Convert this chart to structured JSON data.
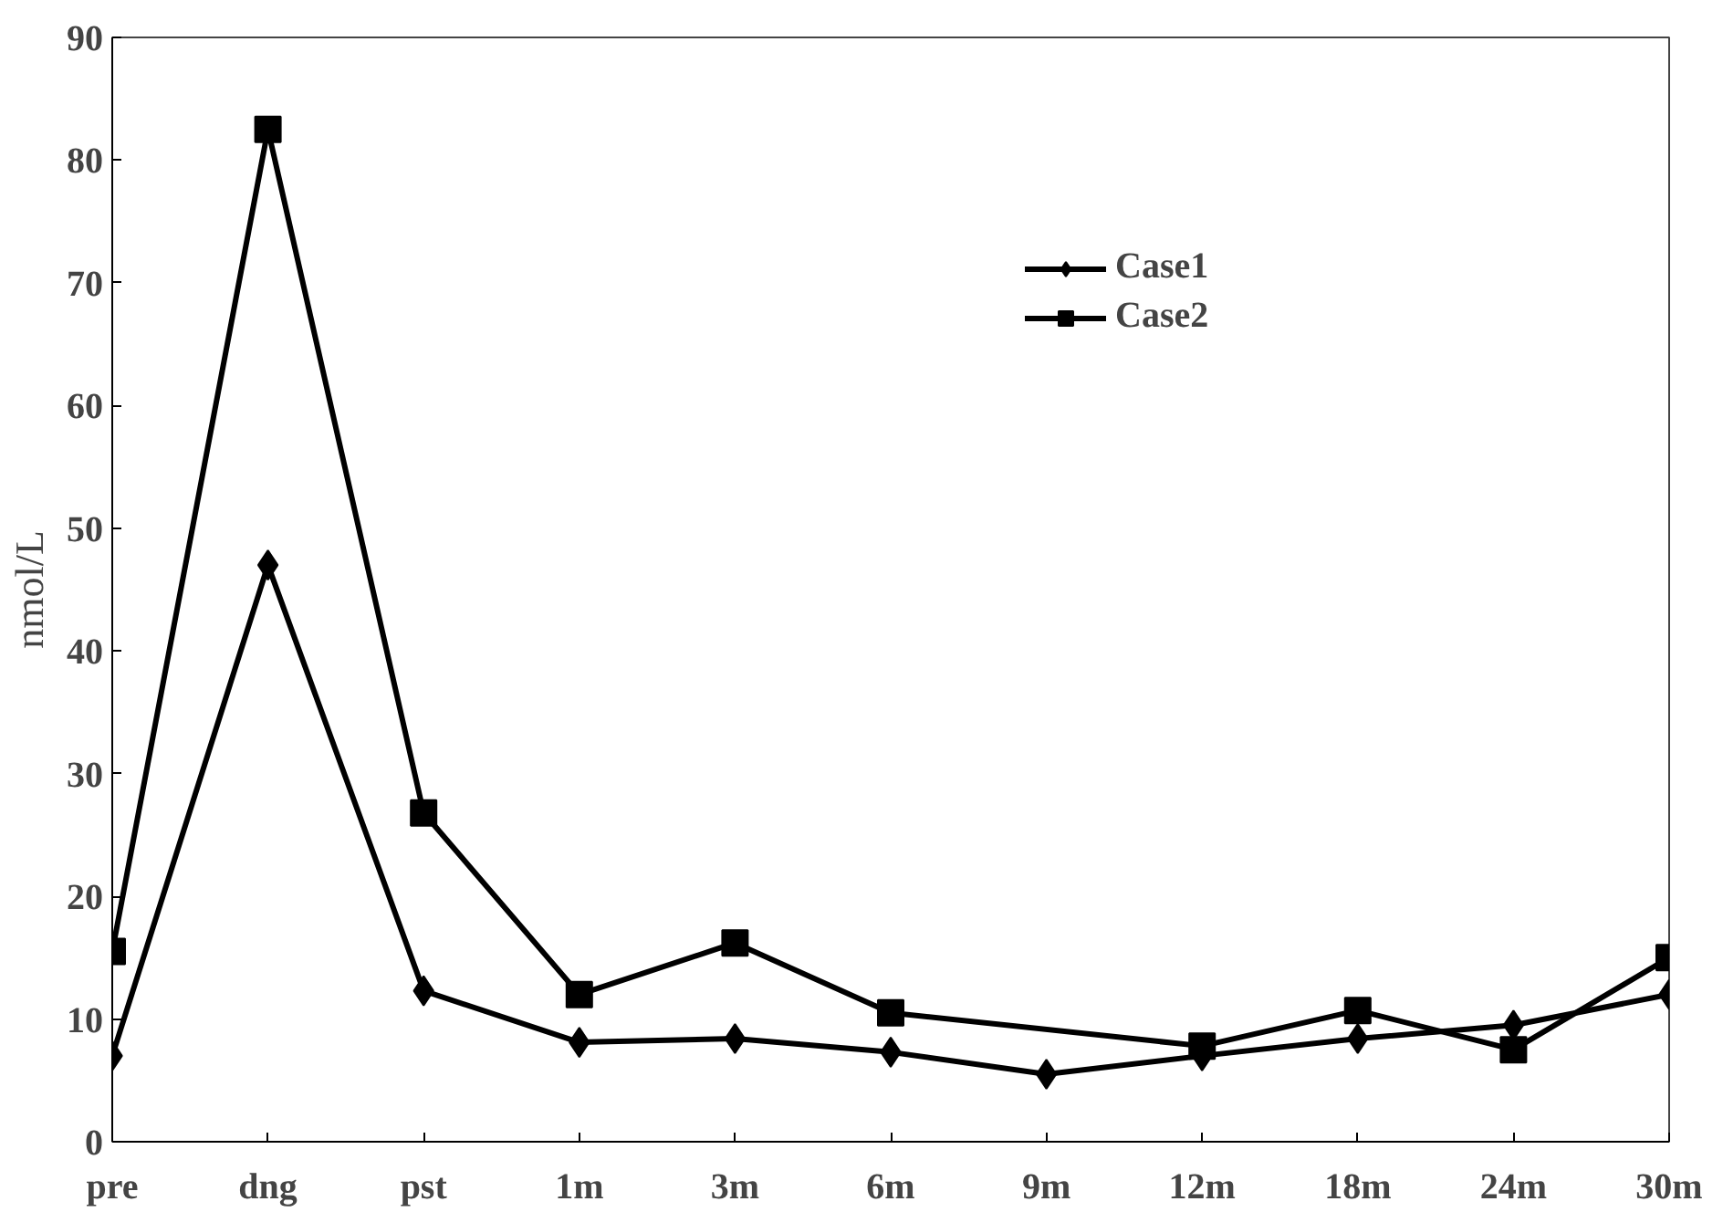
{
  "chart_data": {
    "type": "line",
    "ylabel": "nmol/L",
    "categories": [
      "pre",
      "dng",
      "pst",
      "1m",
      "3m",
      "6m",
      "9m",
      "12m",
      "18m",
      "24m",
      "30m"
    ],
    "series": [
      {
        "name": "Case1",
        "color": "#000000",
        "marker": "diamond",
        "values": [
          7,
          47,
          12.3,
          8.1,
          8.4,
          7.3,
          5.5,
          7,
          8.4,
          9.5,
          12
        ]
      },
      {
        "name": "Case2",
        "color": "#000000",
        "marker": "square",
        "values": [
          15.5,
          82.5,
          26.8,
          12,
          16.2,
          10.5,
          null,
          7.8,
          10.7,
          7.5,
          15
        ]
      }
    ],
    "ylim": [
      0,
      90
    ],
    "yticks": [
      0,
      10,
      20,
      30,
      40,
      50,
      60,
      70,
      80,
      90
    ],
    "grid": false,
    "legend": "top right",
    "line_style": "solid"
  }
}
